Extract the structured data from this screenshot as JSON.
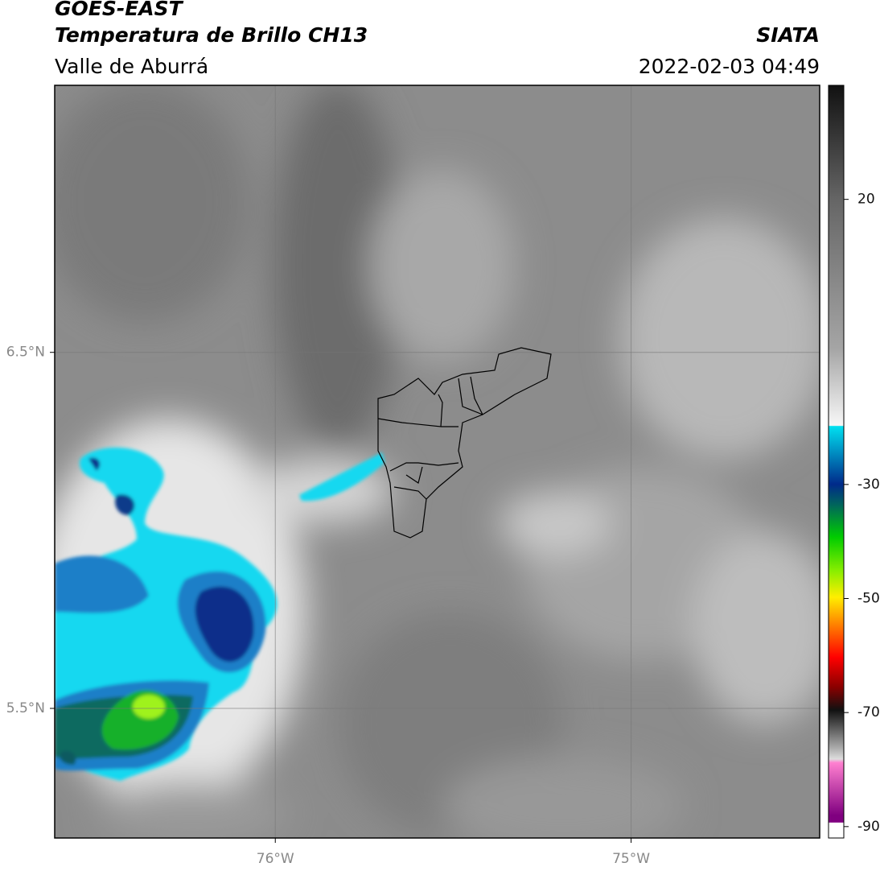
{
  "header": {
    "title": "GOES-EAST",
    "subtitle": "Temperatura de Brillo CH13",
    "region": "Valle de Aburrá",
    "source": "SIATA",
    "datetime": "2022-02-03 04:49"
  },
  "map": {
    "xlim": [
      -76.62,
      -74.47
    ],
    "ylim": [
      5.136,
      7.25
    ],
    "xticks": [
      {
        "value": -76,
        "label": "76°W"
      },
      {
        "value": -75,
        "label": "75°W"
      }
    ],
    "yticks": [
      {
        "value": 6.5,
        "label": "6.5°N"
      },
      {
        "value": 5.5,
        "label": "5.5°N"
      }
    ],
    "grid": true
  },
  "colorbar": {
    "lim": [
      -92,
      40
    ],
    "ticks": [
      20,
      -30,
      -50,
      -70,
      -90
    ]
  }
}
